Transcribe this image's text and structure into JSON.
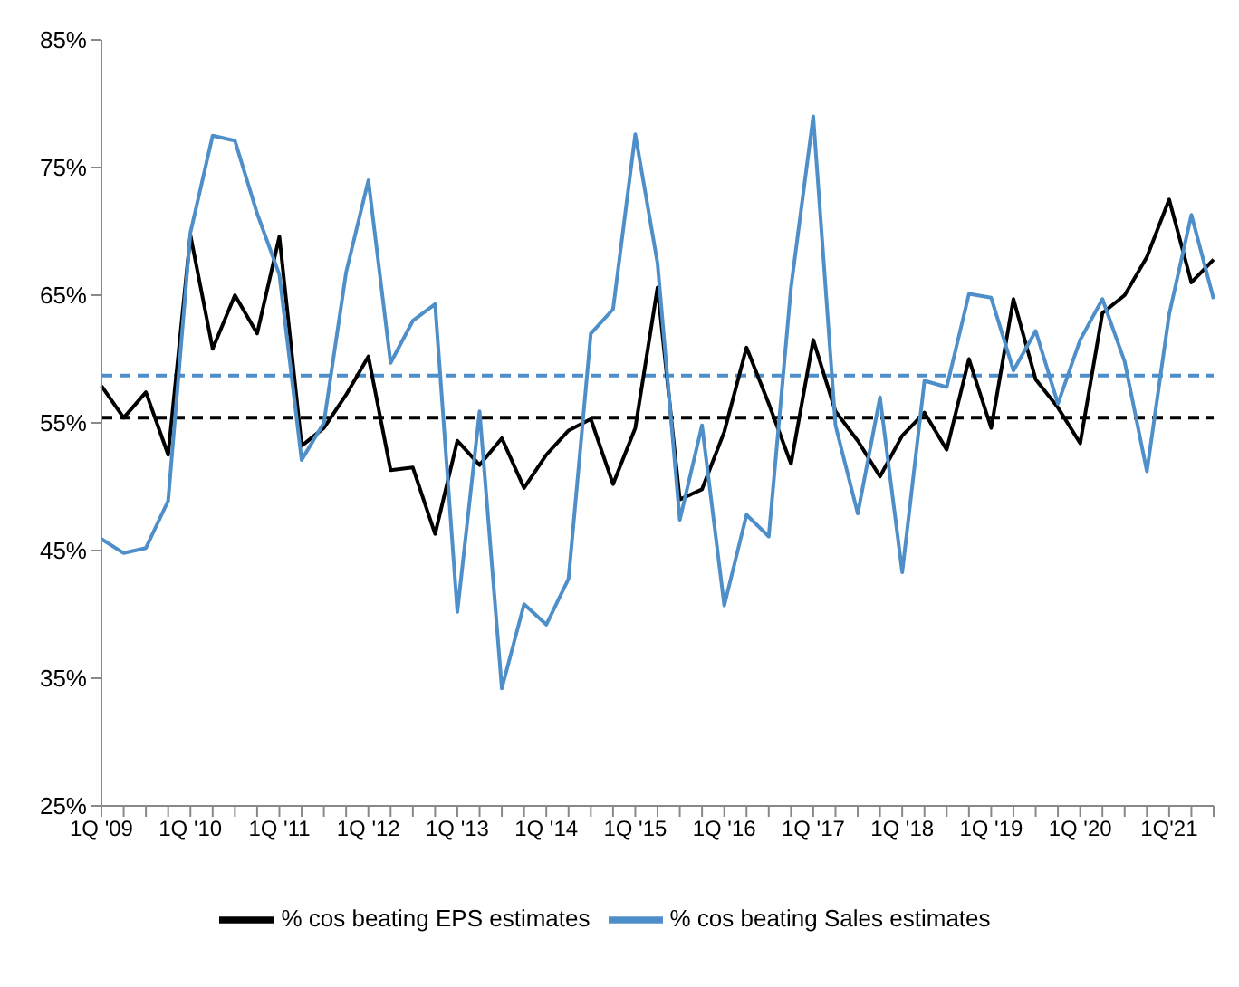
{
  "chart_data": {
    "type": "line",
    "categories": [
      "1Q '09",
      null,
      null,
      null,
      "1Q '10",
      null,
      null,
      null,
      "1Q '11",
      null,
      null,
      null,
      "1Q '12",
      null,
      null,
      null,
      "1Q '13",
      null,
      null,
      null,
      "1Q '14",
      null,
      null,
      null,
      "1Q '15",
      null,
      null,
      null,
      "1Q '16",
      null,
      null,
      null,
      "1Q '17",
      null,
      null,
      null,
      "1Q '18",
      null,
      null,
      null,
      "1Q '19",
      null,
      null,
      null,
      "1Q '20",
      null,
      null,
      null,
      "1Q'21",
      null,
      null
    ],
    "series": [
      {
        "name": "% cos beating EPS estimates",
        "color": "#000000",
        "values": [
          57.9,
          55.4,
          57.4,
          52.5,
          69.7,
          60.8,
          65.0,
          62.0,
          69.6,
          53.2,
          54.6,
          57.2,
          60.2,
          51.3,
          51.5,
          46.3,
          53.6,
          51.7,
          53.8,
          49.9,
          52.5,
          54.4,
          55.3,
          50.2,
          54.6,
          65.6,
          49.0,
          49.8,
          54.3,
          60.9,
          56.5,
          51.8,
          61.5,
          55.9,
          53.6,
          50.8,
          54.0,
          55.8,
          52.9,
          60.0,
          54.6,
          64.7,
          58.4,
          56.2,
          53.4,
          63.6,
          65.0,
          68.0,
          72.5,
          66.0,
          67.8
        ]
      },
      {
        "name": "% cos beating Sales estimates",
        "color": "#4f8fc9",
        "values": [
          45.9,
          44.8,
          45.2,
          48.9,
          69.9,
          77.5,
          77.1,
          71.4,
          66.6,
          52.1,
          55.0,
          66.8,
          74.0,
          59.7,
          63.0,
          64.3,
          40.2,
          55.9,
          34.2,
          40.8,
          39.2,
          42.8,
          62.0,
          63.9,
          77.6,
          67.5,
          47.4,
          54.8,
          40.7,
          47.8,
          46.1,
          65.6,
          79.0,
          54.8,
          47.9,
          57.0,
          43.3,
          58.3,
          57.8,
          65.1,
          64.8,
          59.1,
          62.2,
          56.5,
          61.5,
          64.7,
          59.8,
          51.2,
          63.5,
          71.3,
          64.7
        ]
      }
    ],
    "ylim": [
      25,
      85
    ],
    "yticks": [
      {
        "value": 25,
        "label": "25%"
      },
      {
        "value": 35,
        "label": "35%"
      },
      {
        "value": 45,
        "label": "45%"
      },
      {
        "value": 55,
        "label": "55%"
      },
      {
        "value": 65,
        "label": "65%"
      },
      {
        "value": 75,
        "label": "75%"
      },
      {
        "value": 85,
        "label": "85%"
      }
    ],
    "ref_lines": [
      {
        "axis": "y",
        "value": 55.4,
        "color": "#000000",
        "line_style": "dashed"
      },
      {
        "axis": "y",
        "value": 58.7,
        "color": "#4f8fc9",
        "line_style": "dashed"
      }
    ],
    "grid": false,
    "legend": "bottom",
    "marker": "none",
    "line_style": "solid"
  }
}
